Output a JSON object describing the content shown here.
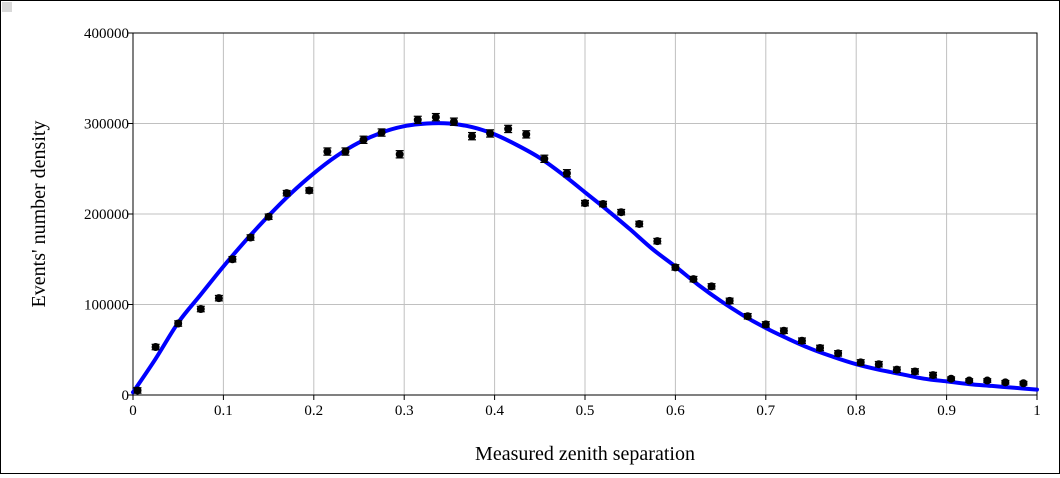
{
  "chart_data": {
    "type": "scatter",
    "xlabel": "Measured zenith separation",
    "ylabel": "Events' number density",
    "xlim": [
      0,
      1
    ],
    "ylim": [
      0,
      400000
    ],
    "xticks": [
      "0",
      "0.1",
      "0.2",
      "0.3",
      "0.4",
      "0.5",
      "0.6",
      "0.7",
      "0.8",
      "0.9",
      "1"
    ],
    "yticks": [
      "0",
      "100000",
      "200000",
      "300000",
      "400000"
    ],
    "grid": true,
    "colors": {
      "fit": "#0000ff",
      "points": "#000000",
      "grid": "#c0c0c0"
    },
    "series": [
      {
        "kind": "points_with_errorbars",
        "x": [
          0.005,
          0.025,
          0.05,
          0.075,
          0.095,
          0.11,
          0.13,
          0.15,
          0.17,
          0.195,
          0.215,
          0.235,
          0.255,
          0.275,
          0.295,
          0.315,
          0.335,
          0.355,
          0.375,
          0.395,
          0.415,
          0.435,
          0.455,
          0.48,
          0.5,
          0.52,
          0.54,
          0.56,
          0.58,
          0.6,
          0.62,
          0.64,
          0.66,
          0.68,
          0.7,
          0.72,
          0.74,
          0.76,
          0.78,
          0.805,
          0.825,
          0.845,
          0.865,
          0.885,
          0.905,
          0.925,
          0.945,
          0.965,
          0.985
        ],
        "y": [
          5000,
          53000,
          79000,
          95000,
          107000,
          150000,
          174000,
          197000,
          223000,
          226000,
          269000,
          269000,
          282000,
          290000,
          266000,
          304000,
          307000,
          302000,
          286000,
          289000,
          294000,
          288000,
          261000,
          245000,
          212000,
          211000,
          202000,
          189000,
          170000,
          141000,
          128000,
          120000,
          104000,
          87000,
          78000,
          71000,
          60000,
          52000,
          46000,
          36000,
          34000,
          28000,
          26000,
          22000,
          18000,
          16000,
          16000,
          14000,
          13000
        ],
        "yerr": [
          3000,
          3000,
          3000,
          3000,
          3000,
          3000,
          3000,
          3000,
          3000,
          3000,
          4000,
          4000,
          4000,
          4000,
          4000,
          4000,
          4000,
          4000,
          4000,
          4000,
          4000,
          4000,
          4000,
          4000,
          3000,
          3000,
          3000,
          3000,
          3000,
          3000,
          3000,
          3000,
          3000,
          3000,
          3000,
          3000,
          3000,
          3000,
          3000,
          3000,
          3000,
          3000,
          3000,
          3000,
          2000,
          2000,
          2000,
          2000,
          2000
        ]
      },
      {
        "kind": "fit_curve",
        "x": [
          0,
          0.025,
          0.05,
          0.075,
          0.1,
          0.125,
          0.15,
          0.175,
          0.2,
          0.225,
          0.25,
          0.275,
          0.3,
          0.325,
          0.35,
          0.375,
          0.4,
          0.425,
          0.45,
          0.475,
          0.5,
          0.525,
          0.55,
          0.575,
          0.6,
          0.625,
          0.65,
          0.675,
          0.7,
          0.725,
          0.75,
          0.775,
          0.8,
          0.825,
          0.85,
          0.875,
          0.9,
          0.925,
          0.95,
          0.975,
          1.0
        ],
        "y": [
          3000,
          40000,
          80000,
          111000,
          142000,
          171000,
          198000,
          223000,
          245000,
          264000,
          279000,
          290000,
          297000,
          300000,
          300000,
          296000,
          288000,
          276000,
          262000,
          244000,
          224000,
          204000,
          183000,
          161000,
          142000,
          122000,
          104000,
          88000,
          74000,
          62000,
          51000,
          42000,
          34000,
          28000,
          23000,
          18000,
          15000,
          12000,
          10000,
          8000,
          6000
        ]
      }
    ]
  }
}
